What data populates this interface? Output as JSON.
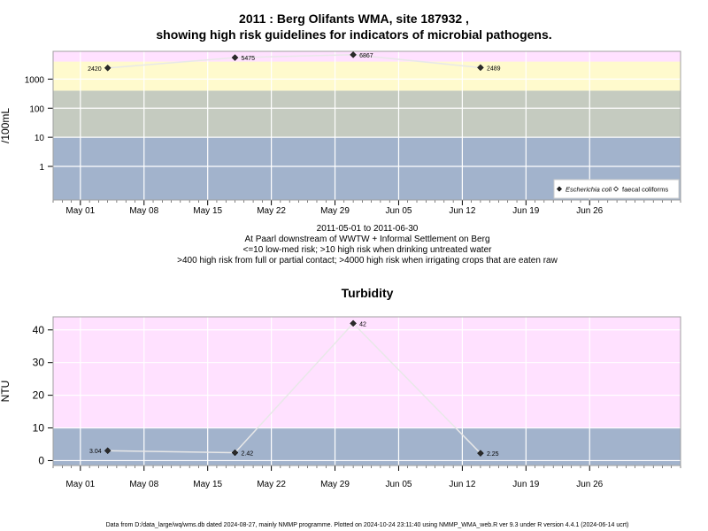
{
  "page": {
    "title_line1": "2011 : Berg Olifants WMA, site 187932 ,",
    "title_line2": "showing high risk guidelines for indicators of microbial pathogens.",
    "caption_lines": [
      "2011-05-01 to 2011-06-30",
      "At Paarl downstream of WWTW + Informal Settlement on Berg",
      "<=10 low-med risk; >10 high risk when drinking untreated water",
      ">400 high risk from full or partial contact; >4000 high risk when irrigating crops that are eaten raw"
    ],
    "footer": "Data from D:/data_large/wq/wms.db dated 2024-08-27, mainly NMMP programme. Plotted on 2024-10-24 23:11:40 using NMMP_WMA_web.R ver 9.3 under R version 4.4.1 (2024-06-14 ucrt)"
  },
  "chart_data": [
    {
      "type": "line",
      "title": "2011 : Berg Olifants WMA, site 187932 , showing high risk guidelines for indicators of microbial pathogens.",
      "ylabel": "/100mL",
      "xlabel": "",
      "y_scale": "log10",
      "ylim": [
        0.07,
        9000
      ],
      "xlim": [
        "2011-04-28",
        "2011-07-06"
      ],
      "x_ticks": [
        "May 01",
        "May 08",
        "May 15",
        "May 22",
        "May 29",
        "Jun 05",
        "Jun 12",
        "Jun 19",
        "Jun 26"
      ],
      "y_ticks": [
        "1",
        "10",
        "100",
        "1000"
      ],
      "bands": [
        {
          "from": 0.07,
          "to": 10,
          "color": "#a2b3cc"
        },
        {
          "from": 10,
          "to": 400,
          "color": "#c5cbc0"
        },
        {
          "from": 400,
          "to": 4000,
          "color": "#fffacd"
        },
        {
          "from": 4000,
          "to": 9000,
          "color": "#ffe1ff"
        }
      ],
      "legend": {
        "placement": "bottom-right",
        "entries": [
          {
            "label": "Escherichia coli",
            "marker": "filled-diamond",
            "italic": true
          },
          {
            "label": "faecal coliforms",
            "marker": "open-diamond",
            "italic": false
          }
        ]
      },
      "series": [
        {
          "name": "Escherichia coli",
          "x": [
            "2011-05-04",
            "2011-05-18",
            "2011-05-31",
            "2011-06-14"
          ],
          "values": [
            2420,
            5475,
            6867,
            2489
          ],
          "labels": [
            "2420",
            "5475",
            "6867",
            "2489"
          ],
          "label_side": [
            "left",
            "right",
            "right",
            "right"
          ]
        }
      ],
      "grid": true
    },
    {
      "type": "line",
      "title": "Turbidity",
      "ylabel": "NTU",
      "xlabel": "",
      "y_scale": "linear",
      "ylim": [
        -1.5,
        44
      ],
      "xlim": [
        "2011-04-28",
        "2011-07-06"
      ],
      "x_ticks": [
        "May 01",
        "May 08",
        "May 15",
        "May 22",
        "May 29",
        "Jun 05",
        "Jun 12",
        "Jun 19",
        "Jun 26"
      ],
      "y_ticks": [
        "0",
        "10",
        "20",
        "30",
        "40"
      ],
      "bands": [
        {
          "from": -1.5,
          "to": 10,
          "color": "#a2b3cc"
        },
        {
          "from": 10,
          "to": 44,
          "color": "#ffe1ff"
        }
      ],
      "series": [
        {
          "name": "",
          "x": [
            "2011-05-04",
            "2011-05-18",
            "2011-05-31",
            "2011-06-14"
          ],
          "values": [
            3.04,
            2.42,
            42,
            2.25
          ],
          "labels": [
            "3.04",
            "2.42",
            "42",
            "2.25"
          ],
          "label_side": [
            "left",
            "right",
            "right",
            "right"
          ]
        }
      ],
      "grid": true
    }
  ]
}
